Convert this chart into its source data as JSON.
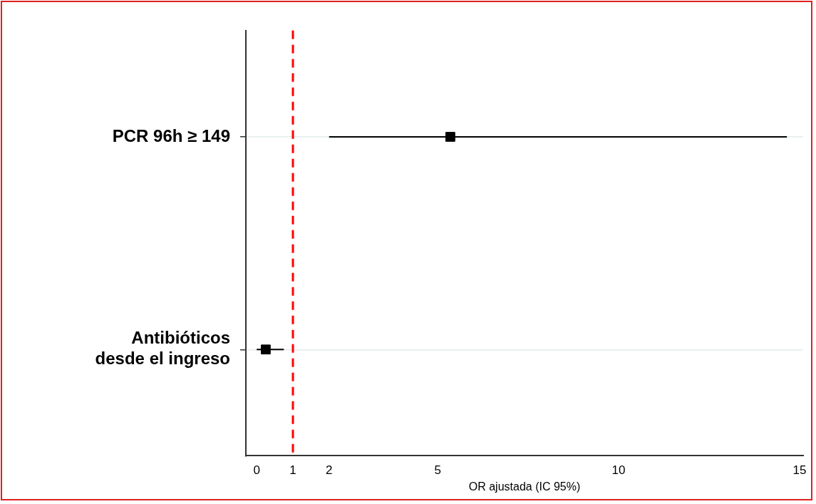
{
  "chart_data": {
    "type": "scatter",
    "orientation": "horizontal",
    "xlabel": "OR ajustada (IC 95%)",
    "categories": [
      "PCR 96h ≥ 149",
      "Antibióticos desde el ingreso"
    ],
    "values": [
      5.35,
      0.25
    ],
    "errors": [
      [
        2.0,
        14.65
      ],
      [
        0.0,
        0.75
      ]
    ],
    "color": "#000000",
    "marker": "square",
    "xlim": [
      -0.3,
      15.1
    ],
    "xticks": [
      0,
      1,
      2,
      5,
      10,
      15
    ],
    "ref_lines": [
      {
        "axis": "x",
        "value": 1,
        "color": "#ff0000",
        "line_style": "dashed"
      }
    ],
    "grid": "y",
    "legend": false
  }
}
